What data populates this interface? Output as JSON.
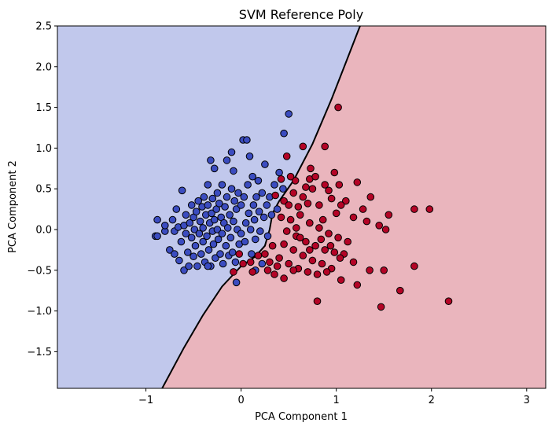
{
  "chart_data": {
    "type": "scatter",
    "title": "SVM Reference Poly",
    "xlabel": "PCA Component 1",
    "ylabel": "PCA Component 2",
    "xlim": [
      -1.93,
      3.2
    ],
    "ylim": [
      -1.95,
      2.5
    ],
    "xticks": [
      "−1",
      "0",
      "1",
      "2",
      "3"
    ],
    "xtick_values": [
      -1,
      0,
      1,
      2,
      3
    ],
    "yticks": [
      "−1.5",
      "−1.0",
      "−0.5",
      "0.0",
      "0.5",
      "1.0",
      "1.5",
      "2.0",
      "2.5"
    ],
    "ytick_values": [
      -1.5,
      -1.0,
      -0.5,
      0.0,
      0.5,
      1.0,
      1.5,
      2.0,
      2.5
    ],
    "grid": false,
    "region_colors": {
      "class_0": "#c1c8ec",
      "class_1": "#eab5bd"
    },
    "boundary_color": "#000000",
    "decision_boundary": [
      [
        -0.83,
        -1.95
      ],
      [
        -0.6,
        -1.45
      ],
      [
        -0.4,
        -1.05
      ],
      [
        -0.2,
        -0.7
      ],
      [
        0.0,
        -0.45
      ],
      [
        0.15,
        -0.33
      ],
      [
        0.25,
        -0.2
      ],
      [
        0.3,
        0.0
      ],
      [
        0.33,
        0.2
      ],
      [
        0.4,
        0.35
      ],
      [
        0.55,
        0.6
      ],
      [
        0.75,
        1.05
      ],
      [
        0.95,
        1.6
      ],
      [
        1.1,
        2.05
      ],
      [
        1.25,
        2.5
      ]
    ],
    "series": [
      {
        "color": "#3b4cc0",
        "points": [
          [
            -0.9,
            -0.08
          ],
          [
            -0.88,
            -0.08
          ],
          [
            -0.88,
            0.12
          ],
          [
            -0.8,
            -0.02
          ],
          [
            -0.8,
            0.05
          ],
          [
            -0.75,
            -0.25
          ],
          [
            -0.72,
            0.12
          ],
          [
            -0.7,
            -0.02
          ],
          [
            -0.7,
            -0.3
          ],
          [
            -0.68,
            0.25
          ],
          [
            -0.66,
            0.03
          ],
          [
            -0.65,
            -0.38
          ],
          [
            -0.63,
            -0.15
          ],
          [
            -0.62,
            0.48
          ],
          [
            -0.6,
            -0.5
          ],
          [
            -0.6,
            0.05
          ],
          [
            -0.58,
            0.18
          ],
          [
            -0.58,
            -0.05
          ],
          [
            -0.56,
            -0.28
          ],
          [
            -0.55,
            -0.45
          ],
          [
            -0.54,
            0.08
          ],
          [
            -0.52,
            0.3
          ],
          [
            -0.52,
            -0.1
          ],
          [
            -0.5,
            0.15
          ],
          [
            -0.5,
            -0.33
          ],
          [
            -0.49,
            0.0
          ],
          [
            -0.48,
            -0.2
          ],
          [
            -0.47,
            0.22
          ],
          [
            -0.46,
            -0.45
          ],
          [
            -0.45,
            0.35
          ],
          [
            -0.44,
            -0.05
          ],
          [
            -0.43,
            0.1
          ],
          [
            -0.42,
            -0.3
          ],
          [
            -0.41,
            0.28
          ],
          [
            -0.4,
            0.02
          ],
          [
            -0.4,
            -0.15
          ],
          [
            -0.39,
            0.4
          ],
          [
            -0.38,
            -0.4
          ],
          [
            -0.37,
            0.18
          ],
          [
            -0.36,
            -0.08
          ],
          [
            -0.35,
            0.3
          ],
          [
            -0.34,
            -0.25
          ],
          [
            -0.33,
            0.08
          ],
          [
            -0.32,
            -0.45
          ],
          [
            -0.31,
            0.2
          ],
          [
            -0.3,
            -0.02
          ],
          [
            -0.3,
            0.38
          ],
          [
            -0.29,
            -0.18
          ],
          [
            -0.28,
            0.12
          ],
          [
            -0.27,
            -0.35
          ],
          [
            -0.26,
            0.25
          ],
          [
            -0.25,
            0.0
          ],
          [
            -0.25,
            0.45
          ],
          [
            -0.24,
            -0.12
          ],
          [
            -0.23,
            0.32
          ],
          [
            -0.22,
            -0.3
          ],
          [
            -0.21,
            0.15
          ],
          [
            -0.2,
            -0.05
          ],
          [
            -0.2,
            0.55
          ],
          [
            -0.19,
            -0.42
          ],
          [
            -0.18,
            0.08
          ],
          [
            -0.17,
            0.28
          ],
          [
            -0.16,
            -0.2
          ],
          [
            -0.15,
            0.4
          ],
          [
            -0.14,
            0.02
          ],
          [
            -0.13,
            -0.32
          ],
          [
            -0.12,
            0.18
          ],
          [
            -0.11,
            -0.1
          ],
          [
            -0.1,
            0.5
          ],
          [
            -0.1,
            0.95
          ],
          [
            -0.09,
            -0.28
          ],
          [
            -0.08,
            0.1
          ],
          [
            -0.07,
            0.35
          ],
          [
            -0.06,
            -0.4
          ],
          [
            -0.05,
            0.25
          ],
          [
            -0.04,
            0.0
          ],
          [
            -0.03,
            0.45
          ],
          [
            -0.02,
            -0.18
          ],
          [
            0.0,
            0.3
          ],
          [
            0.0,
            -0.05
          ],
          [
            0.02,
            1.1
          ],
          [
            0.03,
            0.4
          ],
          [
            0.04,
            -0.15
          ],
          [
            0.05,
            0.08
          ],
          [
            0.06,
            1.1
          ],
          [
            0.07,
            0.55
          ],
          [
            0.08,
            0.2
          ],
          [
            0.09,
            0.9
          ],
          [
            0.1,
            0.0
          ],
          [
            0.11,
            -0.3
          ],
          [
            0.12,
            0.65
          ],
          [
            0.13,
            0.3
          ],
          [
            0.14,
            0.12
          ],
          [
            0.15,
            -0.12
          ],
          [
            0.16,
            0.4
          ],
          [
            0.18,
            0.6
          ],
          [
            0.19,
            0.22
          ],
          [
            0.2,
            -0.02
          ],
          [
            0.22,
            0.45
          ],
          [
            0.24,
            0.15
          ],
          [
            0.25,
            0.8
          ],
          [
            0.27,
            0.3
          ],
          [
            0.28,
            -0.08
          ],
          [
            0.3,
            0.4
          ],
          [
            0.32,
            0.18
          ],
          [
            0.35,
            0.55
          ],
          [
            0.4,
            0.7
          ],
          [
            0.44,
            0.5
          ],
          [
            0.38,
            0.25
          ],
          [
            0.5,
            1.42
          ],
          [
            0.45,
            1.18
          ],
          [
            -0.28,
            0.75
          ],
          [
            -0.32,
            0.85
          ],
          [
            -0.35,
            0.55
          ],
          [
            -0.08,
            0.72
          ],
          [
            -0.15,
            0.85
          ],
          [
            -0.05,
            -0.65
          ],
          [
            -0.35,
            -0.45
          ],
          [
            0.22,
            -0.42
          ],
          [
            0.15,
            -0.5
          ]
        ]
      },
      {
        "color": "#b40426",
        "points": [
          [
            1.02,
            1.5
          ],
          [
            0.65,
            1.02
          ],
          [
            0.88,
            1.02
          ],
          [
            0.48,
            0.9
          ],
          [
            0.73,
            0.75
          ],
          [
            0.98,
            0.7
          ],
          [
            0.72,
            0.62
          ],
          [
            0.57,
            0.6
          ],
          [
            0.68,
            0.52
          ],
          [
            0.42,
            0.62
          ],
          [
            0.88,
            0.55
          ],
          [
            0.92,
            0.48
          ],
          [
            1.03,
            0.55
          ],
          [
            1.22,
            0.58
          ],
          [
            1.36,
            0.4
          ],
          [
            1.55,
            0.18
          ],
          [
            1.82,
            0.25
          ],
          [
            1.98,
            0.25
          ],
          [
            1.1,
            0.35
          ],
          [
            1.28,
            0.25
          ],
          [
            0.75,
            0.5
          ],
          [
            0.55,
            0.45
          ],
          [
            0.45,
            0.35
          ],
          [
            0.6,
            0.28
          ],
          [
            0.7,
            0.32
          ],
          [
            0.82,
            0.3
          ],
          [
            0.95,
            0.38
          ],
          [
            1.05,
            0.3
          ],
          [
            1.18,
            0.15
          ],
          [
            1.32,
            0.1
          ],
          [
            1.45,
            0.05
          ],
          [
            1.52,
            0.0
          ],
          [
            0.42,
            0.15
          ],
          [
            0.52,
            0.12
          ],
          [
            0.62,
            0.18
          ],
          [
            0.72,
            0.08
          ],
          [
            0.82,
            0.02
          ],
          [
            0.92,
            -0.05
          ],
          [
            1.02,
            -0.1
          ],
          [
            1.12,
            -0.15
          ],
          [
            0.48,
            -0.02
          ],
          [
            0.58,
            -0.08
          ],
          [
            0.68,
            -0.15
          ],
          [
            0.78,
            -0.2
          ],
          [
            0.88,
            -0.25
          ],
          [
            0.98,
            -0.28
          ],
          [
            1.08,
            -0.3
          ],
          [
            0.45,
            -0.18
          ],
          [
            0.55,
            -0.25
          ],
          [
            0.65,
            -0.32
          ],
          [
            0.75,
            -0.38
          ],
          [
            0.85,
            -0.42
          ],
          [
            0.95,
            -0.48
          ],
          [
            0.4,
            -0.35
          ],
          [
            0.5,
            -0.42
          ],
          [
            0.6,
            -0.48
          ],
          [
            0.7,
            -0.52
          ],
          [
            0.8,
            -0.55
          ],
          [
            0.9,
            -0.52
          ],
          [
            0.35,
            -0.55
          ],
          [
            0.45,
            -0.6
          ],
          [
            0.55,
            -0.5
          ],
          [
            0.3,
            -0.4
          ],
          [
            0.25,
            -0.3
          ],
          [
            0.33,
            -0.2
          ],
          [
            0.38,
            -0.45
          ],
          [
            0.62,
            -0.1
          ],
          [
            0.72,
            -0.25
          ],
          [
            0.84,
            -0.12
          ],
          [
            0.94,
            -0.2
          ],
          [
            1.04,
            -0.35
          ],
          [
            0.58,
            0.02
          ],
          [
            1.18,
            -0.4
          ],
          [
            1.35,
            -0.5
          ],
          [
            1.22,
            -0.68
          ],
          [
            1.5,
            -0.5
          ],
          [
            1.82,
            -0.45
          ],
          [
            1.67,
            -0.75
          ],
          [
            1.47,
            -0.95
          ],
          [
            2.18,
            -0.88
          ],
          [
            0.8,
            -0.88
          ],
          [
            1.05,
            -0.62
          ],
          [
            0.12,
            -0.52
          ],
          [
            0.1,
            -0.4
          ],
          [
            -0.08,
            -0.52
          ],
          [
            -0.02,
            -0.3
          ],
          [
            0.02,
            -0.42
          ],
          [
            0.18,
            -0.32
          ],
          [
            0.28,
            -0.5
          ],
          [
            0.65,
            0.4
          ],
          [
            0.78,
            0.65
          ],
          [
            0.52,
            0.65
          ],
          [
            1.0,
            0.2
          ],
          [
            0.86,
            0.12
          ],
          [
            0.5,
            0.3
          ],
          [
            0.36,
            0.42
          ]
        ]
      }
    ]
  }
}
